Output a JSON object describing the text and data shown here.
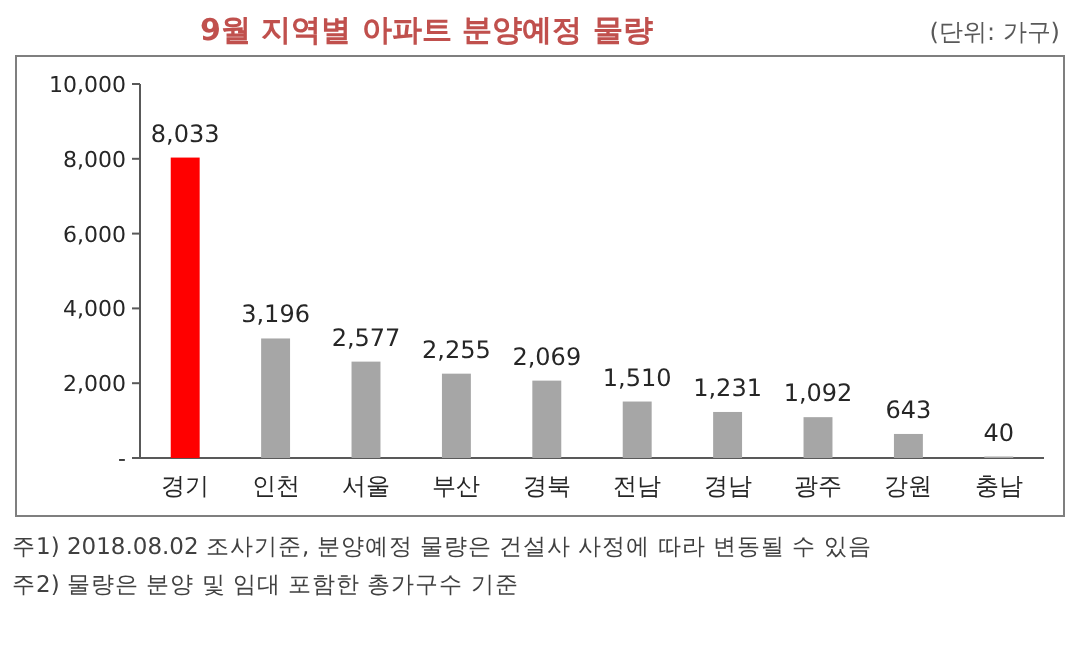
{
  "chart_data": {
    "type": "bar",
    "title": "9월 지역별 아파트 분양예정 물량",
    "subtitle": "(단위: 가구)",
    "categories": [
      "경기",
      "인천",
      "서울",
      "부산",
      "경북",
      "전남",
      "경남",
      "광주",
      "강원",
      "충남"
    ],
    "values": [
      8033,
      3196,
      2577,
      2255,
      2069,
      1510,
      1231,
      1092,
      643,
      40
    ],
    "colors": [
      "#ff0000",
      "#a6a6a6",
      "#a6a6a6",
      "#a6a6a6",
      "#a6a6a6",
      "#a6a6a6",
      "#a6a6a6",
      "#a6a6a6",
      "#a6a6a6",
      "#a6a6a6"
    ],
    "ylim": [
      0,
      10000
    ],
    "yticks": [
      {
        "value": 0,
        "label": "-"
      },
      {
        "value": 2000,
        "label": "2,000"
      },
      {
        "value": 4000,
        "label": "4,000"
      },
      {
        "value": 6000,
        "label": "6,000"
      },
      {
        "value": 8000,
        "label": "8,000"
      },
      {
        "value": 10000,
        "label": "10,000"
      }
    ],
    "value_labels": [
      "8,033",
      "3,196",
      "2,577",
      "2,255",
      "2,069",
      "1,510",
      "1,231",
      "1,092",
      "643",
      "40"
    ],
    "annotations": [
      "주1) 2018.08.02 조사기준, 분양예정 물량은 건설사 사정에 따라 변동될 수 있음",
      "주2) 물량은 분양 및 임대 포함한 총가구수 기준"
    ]
  }
}
